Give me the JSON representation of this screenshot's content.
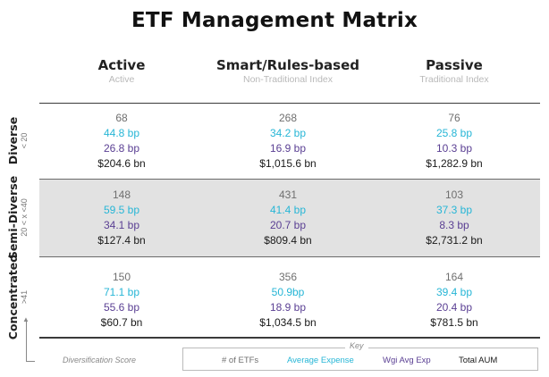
{
  "title": "ETF Management Matrix",
  "columns": [
    {
      "label": "Active",
      "sublabel": "Active"
    },
    {
      "label": "Smart/Rules-based",
      "sublabel": "Non-Traditional Index"
    },
    {
      "label": "Passive",
      "sublabel": "Traditional Index"
    }
  ],
  "rows": [
    {
      "label": "Diverse",
      "sublabel": "< 20"
    },
    {
      "label": "Semi-Diverse",
      "sublabel": "20 < x <40"
    },
    {
      "label": "Concentrated",
      "sublabel": ">41"
    }
  ],
  "cells": [
    [
      {
        "count": "68",
        "expense": "44.8 bp",
        "wgi": "26.8 bp",
        "aum": "$204.6 bn"
      },
      {
        "count": "268",
        "expense": "34.2 bp",
        "wgi": "16.9 bp",
        "aum": "$1,015.6 bn"
      },
      {
        "count": "76",
        "expense": "25.8 bp",
        "wgi": "10.3 bp",
        "aum": "$1,282.9 bn"
      }
    ],
    [
      {
        "count": "148",
        "expense": "59.5 bp",
        "wgi": "34.1 bp",
        "aum": "$127.4 bn"
      },
      {
        "count": "431",
        "expense": "41.4 bp",
        "wgi": "20.7 bp",
        "aum": "$809.4 bn"
      },
      {
        "count": "103",
        "expense": "37.3 bp",
        "wgi": "8.3 bp",
        "aum": "$2,731.2 bn"
      }
    ],
    [
      {
        "count": "150",
        "expense": "71.1 bp",
        "wgi": "55.6 bp",
        "aum": "$60.7 bn"
      },
      {
        "count": "356",
        "expense": "50.9bp",
        "wgi": "18.9 bp",
        "aum": "$1,034.5 bn"
      },
      {
        "count": "164",
        "expense": "39.4 bp",
        "wgi": "20.4 bp",
        "aum": "$781.5 bn"
      }
    ]
  ],
  "axis_label": "Diversification Score",
  "key": {
    "title": "Key",
    "count": "# of ETFs",
    "expense": "Average Expense",
    "wgi": "Wgi Avg Exp",
    "aum": "Total AUM"
  },
  "colors": {
    "count": "#6f6f6f",
    "expense": "#27b6d6",
    "wgi": "#5a3f93",
    "aum": "#1a1a1a",
    "shaded_band": "#e2e2e2"
  },
  "chart_data": {
    "type": "table",
    "title": "ETF Management Matrix",
    "columns": [
      "Active",
      "Smart/Rules-based",
      "Passive"
    ],
    "rows": [
      "Diverse",
      "Semi-Diverse",
      "Concentrated"
    ],
    "metrics": [
      "# of ETFs",
      "Average Expense",
      "Wgi Avg Exp",
      "Total AUM"
    ],
    "values": [
      [
        [
          68,
          44.8,
          26.8,
          204.6
        ],
        [
          268,
          34.2,
          16.9,
          1015.6
        ],
        [
          76,
          25.8,
          10.3,
          1282.9
        ]
      ],
      [
        [
          148,
          59.5,
          34.1,
          127.4
        ],
        [
          431,
          41.4,
          20.7,
          809.4
        ],
        [
          103,
          37.3,
          8.3,
          2731.2
        ]
      ],
      [
        [
          150,
          71.1,
          55.6,
          60.7
        ],
        [
          356,
          50.9,
          18.9,
          1034.5
        ],
        [
          164,
          39.4,
          20.4,
          781.5
        ]
      ]
    ]
  }
}
